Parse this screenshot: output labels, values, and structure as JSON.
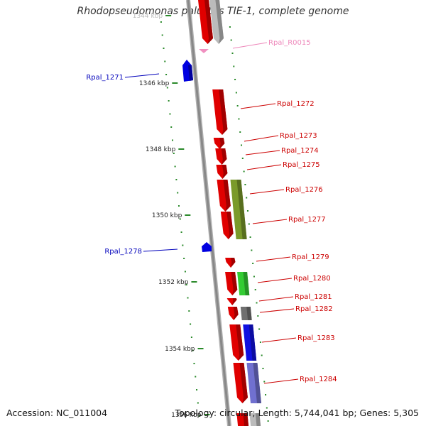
{
  "header": {
    "title": "Rhodopseudomonas palustris TIE-1, complete genome"
  },
  "footer": {
    "accession": "Accession: NC_011004",
    "summary": "Topology: circular; Length: 5,744,041 bp; Genes: 5,305"
  },
  "ruler": {
    "ticks": [
      {
        "label": "1344 kbp",
        "pos": 1344
      },
      {
        "label": "1346 kbp",
        "pos": 1346
      },
      {
        "label": "1348 kbp",
        "pos": 1348
      },
      {
        "label": "1350 kbp",
        "pos": 1350
      },
      {
        "label": "1352 kbp",
        "pos": 1352
      },
      {
        "label": "1354 kbp",
        "pos": 1354
      },
      {
        "label": "1356 kbp",
        "pos": 1356
      }
    ]
  },
  "colors": {
    "gene_forward": "#e00000",
    "gene_reverse": "#0000e0",
    "rna": "#f090c0",
    "label_forward": "#cc0000",
    "label_reverse": "#0000bb",
    "label_rna": "#ee88bb",
    "backbone": "#888888",
    "tick": "#2a8a2a",
    "feature_olive": "#7a9a2a",
    "feature_green": "#33cc33",
    "feature_gray": "#707070",
    "feature_blue": "#1010e0",
    "feature_lavender": "#7070d0",
    "feature_lightgray": "#bbbbbb"
  },
  "genes": [
    {
      "label": "Rpal_R0015",
      "kind": "rna"
    },
    {
      "label": "Rpal_1271",
      "kind": "reverse"
    },
    {
      "label": "Rpal_1272",
      "kind": "forward"
    },
    {
      "label": "Rpal_1273",
      "kind": "forward"
    },
    {
      "label": "Rpal_1274",
      "kind": "forward"
    },
    {
      "label": "Rpal_1275",
      "kind": "forward"
    },
    {
      "label": "Rpal_1276",
      "kind": "forward"
    },
    {
      "label": "Rpal_1277",
      "kind": "forward"
    },
    {
      "label": "Rpal_1278",
      "kind": "reverse"
    },
    {
      "label": "Rpal_1279",
      "kind": "forward"
    },
    {
      "label": "Rpal_1280",
      "kind": "forward"
    },
    {
      "label": "Rpal_1281",
      "kind": "forward"
    },
    {
      "label": "Rpal_1282",
      "kind": "forward"
    },
    {
      "label": "Rpal_1283",
      "kind": "forward"
    },
    {
      "label": "Rpal_1284",
      "kind": "forward"
    }
  ]
}
